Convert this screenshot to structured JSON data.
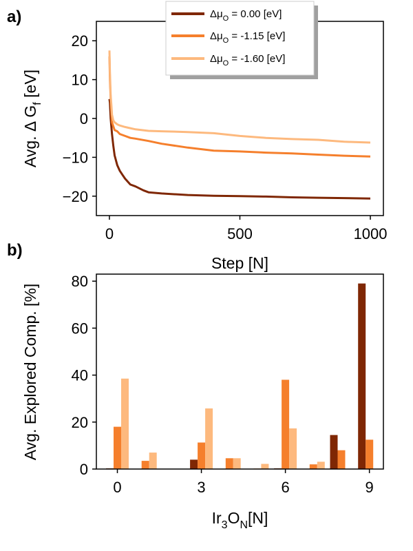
{
  "colors": {
    "series0": "#7f2704",
    "series1": "#f57f2c",
    "series2": "#fdb97e"
  },
  "chart_data": [
    {
      "type": "line",
      "panel_label": "a)",
      "xlabel": "Step [N]",
      "ylabel": "Avg. Δ G",
      "ylabel_sub": "f",
      "ylabel_unit": " [eV]",
      "xlim": [
        -50,
        1050
      ],
      "ylim": [
        -25,
        25
      ],
      "xticks": [
        0,
        500,
        1000
      ],
      "yticks": [
        20,
        10,
        0,
        -10,
        -20
      ],
      "legend_position": "top-center",
      "legend": [
        {
          "pre": "Δμ",
          "sub": "O",
          "post": " =  0.00 [eV]"
        },
        {
          "pre": "Δμ",
          "sub": "O",
          "post": " = -1.15 [eV]"
        },
        {
          "pre": "Δμ",
          "sub": "O",
          "post": " = -1.60 [eV]"
        }
      ],
      "series": [
        {
          "name": "d_mu_O = 0.00 eV",
          "x": [
            0,
            2,
            5,
            10,
            15,
            20,
            30,
            40,
            50,
            60,
            80,
            100,
            130,
            150,
            200,
            300,
            400,
            500,
            600,
            700,
            800,
            900,
            1000
          ],
          "y": [
            5,
            4,
            0,
            -4,
            -7,
            -9.5,
            -12,
            -13.5,
            -14.5,
            -15.5,
            -17,
            -17.5,
            -18.5,
            -19,
            -19.3,
            -19.7,
            -19.9,
            -20,
            -20.1,
            -20.3,
            -20.4,
            -20.5,
            -20.6
          ]
        },
        {
          "name": "d_mu_O = -1.15 eV",
          "x": [
            0,
            2,
            5,
            8,
            10,
            15,
            20,
            30,
            40,
            60,
            80,
            100,
            150,
            200,
            300,
            400,
            500,
            600,
            700,
            800,
            900,
            1000
          ],
          "y": [
            16,
            10,
            5,
            1,
            -1,
            -2,
            -3,
            -3.3,
            -4,
            -4.5,
            -5,
            -5.2,
            -5.8,
            -6.5,
            -7.5,
            -8.3,
            -8.5,
            -8.8,
            -9,
            -9.3,
            -9.6,
            -9.8
          ]
        },
        {
          "name": "d_mu_O = -1.60 eV",
          "x": [
            0,
            2,
            5,
            8,
            10,
            15,
            20,
            30,
            40,
            60,
            80,
            100,
            150,
            200,
            300,
            400,
            500,
            600,
            700,
            800,
            900,
            1000
          ],
          "y": [
            17.5,
            12,
            6,
            3,
            1,
            -0.5,
            -1,
            -1.5,
            -1.8,
            -2.2,
            -2.5,
            -2.8,
            -3.2,
            -3.3,
            -3.5,
            -3.8,
            -4.5,
            -5,
            -5.3,
            -5.5,
            -6,
            -6.2
          ]
        }
      ]
    },
    {
      "type": "bar",
      "panel_label": "b)",
      "xlabel_pre": "Ir",
      "xlabel_sub1": "3",
      "xlabel_mid": "O",
      "xlabel_sub2": "N",
      "xlabel_post": "[N]",
      "ylabel": "Avg. Explored Comp. [%]",
      "xlim": [
        -0.75,
        9.5
      ],
      "ylim": [
        0,
        83
      ],
      "xticks": [
        0,
        3,
        6,
        9
      ],
      "yticks": [
        0,
        20,
        40,
        60,
        80
      ],
      "categories": [
        0,
        1,
        2,
        3,
        4,
        5,
        6,
        7,
        8,
        9
      ],
      "series": [
        {
          "name": "d_mu_O = 0.00 eV",
          "values": [
            0.3,
            0,
            0,
            4,
            0,
            0,
            0.3,
            0,
            14.5,
            79
          ]
        },
        {
          "name": "d_mu_O = -1.15 eV",
          "values": [
            18,
            3.5,
            0,
            11.3,
            4.6,
            0.2,
            38,
            2,
            8,
            12.5
          ]
        },
        {
          "name": "d_mu_O = -1.60 eV",
          "values": [
            38.5,
            7,
            0,
            25.8,
            4.6,
            2.2,
            17.3,
            3.1,
            0,
            0
          ]
        }
      ]
    }
  ]
}
